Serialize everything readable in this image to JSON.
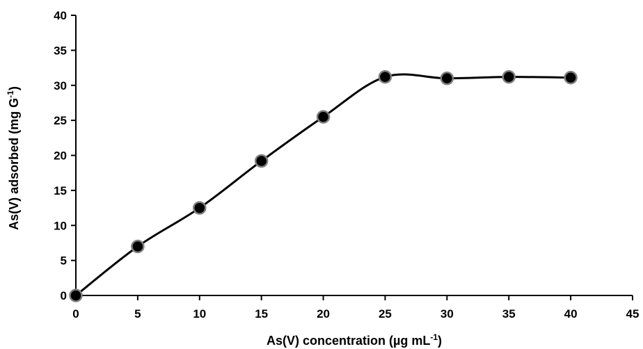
{
  "chart_data": {
    "type": "line",
    "xlabel": "As(V) concentration (µg mL",
    "xlabel_sup": "-1",
    "xlabel_end": ")",
    "ylabel": "As(V) adsorbed (mg G",
    "ylabel_sup": "-1",
    "ylabel_end": ")",
    "xlim": [
      0,
      45
    ],
    "ylim": [
      0,
      40
    ],
    "xticks": [
      0,
      5,
      10,
      15,
      20,
      25,
      30,
      35,
      40,
      45
    ],
    "yticks": [
      0,
      5,
      10,
      15,
      20,
      25,
      30,
      35,
      40
    ],
    "grid": false,
    "series": [
      {
        "x": [
          0,
          5,
          10,
          15,
          20,
          25,
          30,
          35,
          40
        ],
        "y": [
          0,
          7.0,
          12.5,
          19.2,
          25.5,
          31.2,
          31.0,
          31.2,
          31.1
        ],
        "line_color": "#000000",
        "marker_color": "#000000",
        "marker_edge_color": "#808080",
        "smooth": true
      }
    ]
  }
}
